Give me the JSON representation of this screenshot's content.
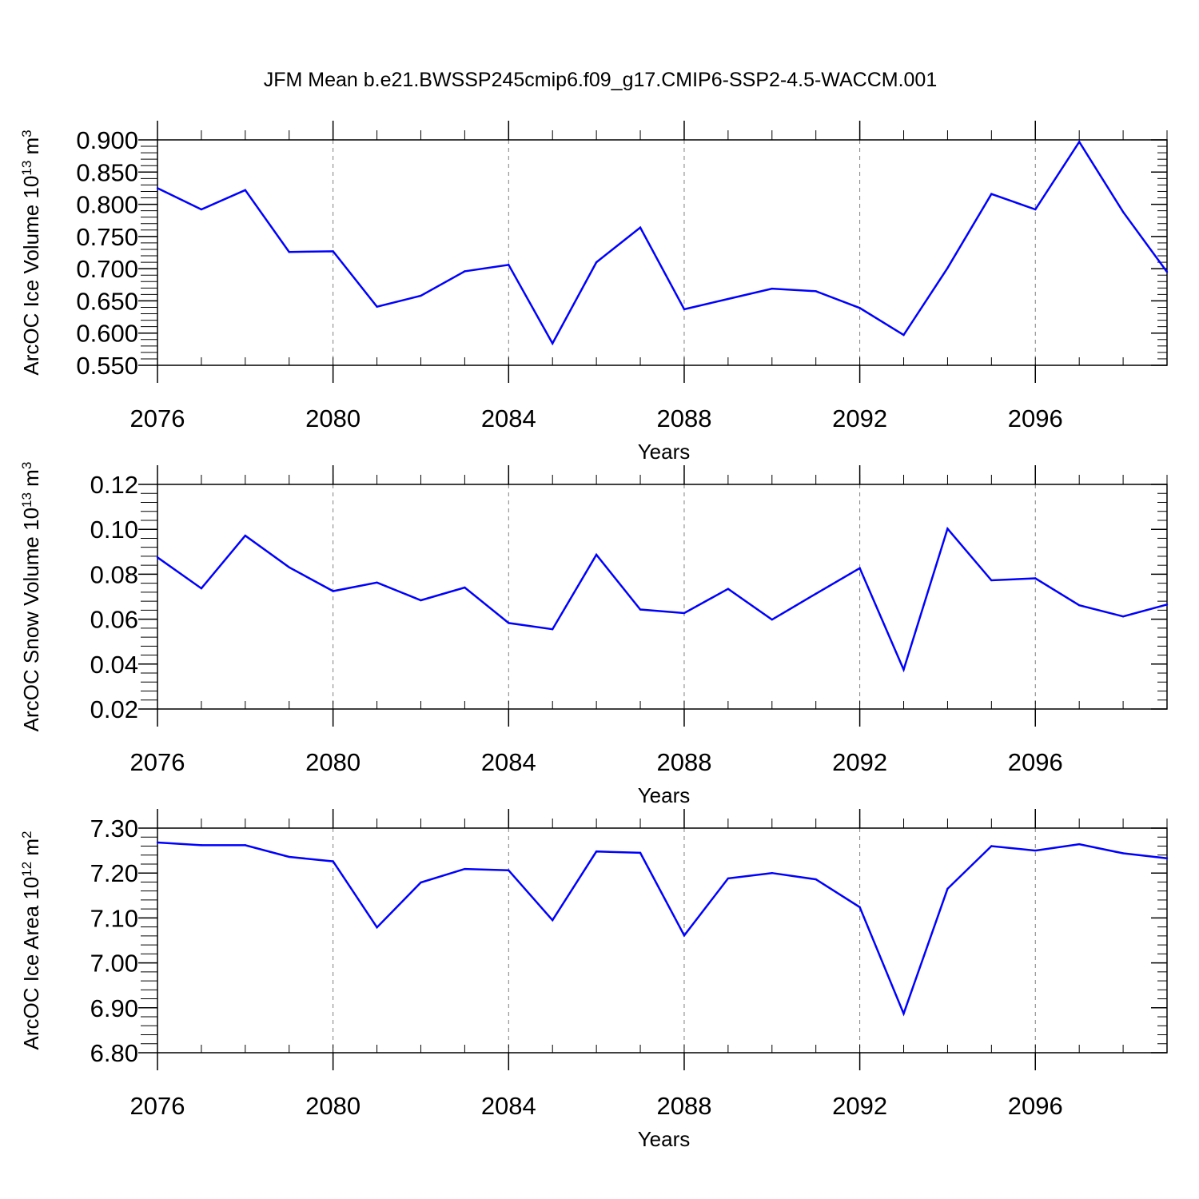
{
  "figure_title": "JFM Mean b.e21.BWSSP245cmip6.f09_g17.CMIP6-SSP2-4.5-WACCM.001",
  "colors": {
    "line": "#0000ff",
    "axis": "#000000",
    "grid": "#808080",
    "background": "#ffffff"
  },
  "chart_data": [
    {
      "type": "line",
      "ylabel": {
        "text": "ArcOC Ice Volume 10",
        "exponent": "13",
        "unit": " m",
        "unit_exponent": "3"
      },
      "xlabel": "Years",
      "xlim": [
        2076,
        2099
      ],
      "ylim": [
        0.55,
        0.9
      ],
      "x_ticks": [
        2076,
        2080,
        2084,
        2088,
        2092,
        2096
      ],
      "x_tick_labels": [
        "2076",
        "2080",
        "2084",
        "2088",
        "2092",
        "2096"
      ],
      "y_ticks": [
        0.55,
        0.6,
        0.65,
        0.7,
        0.75,
        0.8,
        0.85,
        0.9
      ],
      "y_tick_labels": [
        "0.550",
        "0.600",
        "0.650",
        "0.700",
        "0.750",
        "0.800",
        "0.850",
        "0.900"
      ],
      "y_minor_step": 0.01,
      "grid": "vertical dashed at major x ticks",
      "x": [
        2076,
        2077,
        2078,
        2079,
        2080,
        2081,
        2082,
        2083,
        2084,
        2085,
        2086,
        2087,
        2088,
        2089,
        2090,
        2091,
        2092,
        2093,
        2094,
        2095,
        2096,
        2097,
        2098,
        2099
      ],
      "values": [
        0.825,
        0.792,
        0.822,
        0.726,
        0.727,
        0.641,
        0.658,
        0.696,
        0.706,
        0.584,
        0.71,
        0.764,
        0.637,
        0.653,
        0.669,
        0.665,
        0.639,
        0.597,
        0.701,
        0.816,
        0.792,
        0.897,
        0.788,
        0.695
      ]
    },
    {
      "type": "line",
      "ylabel": {
        "text": "ArcOC Snow Volume 10",
        "exponent": "13",
        "unit": " m",
        "unit_exponent": "3"
      },
      "xlabel": "Years",
      "xlim": [
        2076,
        2099
      ],
      "ylim": [
        0.02,
        0.12
      ],
      "x_ticks": [
        2076,
        2080,
        2084,
        2088,
        2092,
        2096
      ],
      "x_tick_labels": [
        "2076",
        "2080",
        "2084",
        "2088",
        "2092",
        "2096"
      ],
      "y_ticks": [
        0.02,
        0.04,
        0.06,
        0.08,
        0.1,
        0.12
      ],
      "y_tick_labels": [
        "0.02",
        "0.04",
        "0.06",
        "0.08",
        "0.10",
        "0.12"
      ],
      "y_minor_step": 0.004,
      "grid": "vertical dashed at major x ticks",
      "x": [
        2076,
        2077,
        2078,
        2079,
        2080,
        2081,
        2082,
        2083,
        2084,
        2085,
        2086,
        2087,
        2088,
        2089,
        2090,
        2091,
        2092,
        2093,
        2094,
        2095,
        2096,
        2097,
        2098,
        2099
      ],
      "values": [
        0.0875,
        0.0737,
        0.0972,
        0.0831,
        0.0725,
        0.0763,
        0.0684,
        0.0741,
        0.0583,
        0.0555,
        0.0887,
        0.0643,
        0.0627,
        0.0735,
        0.0598,
        0.0713,
        0.0827,
        0.0375,
        0.1003,
        0.0773,
        0.0782,
        0.0662,
        0.0612,
        0.0665
      ]
    },
    {
      "type": "line",
      "ylabel": {
        "text": "ArcOC Ice Area 10",
        "exponent": "12",
        "unit": " m",
        "unit_exponent": "2"
      },
      "xlabel": "Years",
      "xlim": [
        2076,
        2099
      ],
      "ylim": [
        6.8,
        7.3
      ],
      "x_ticks": [
        2076,
        2080,
        2084,
        2088,
        2092,
        2096
      ],
      "x_tick_labels": [
        "2076",
        "2080",
        "2084",
        "2088",
        "2092",
        "2096"
      ],
      "y_ticks": [
        6.8,
        6.9,
        7.0,
        7.1,
        7.2,
        7.3
      ],
      "y_tick_labels": [
        "6.80",
        "6.90",
        "7.00",
        "7.10",
        "7.20",
        "7.30"
      ],
      "y_minor_step": 0.02,
      "grid": "vertical dashed at major x ticks",
      "x": [
        2076,
        2077,
        2078,
        2079,
        2080,
        2081,
        2082,
        2083,
        2084,
        2085,
        2086,
        2087,
        2088,
        2089,
        2090,
        2091,
        2092,
        2093,
        2094,
        2095,
        2096,
        2097,
        2098,
        2099
      ],
      "values": [
        7.268,
        7.262,
        7.262,
        7.236,
        7.226,
        7.079,
        7.179,
        7.209,
        7.206,
        7.095,
        7.248,
        7.245,
        7.061,
        7.188,
        7.2,
        7.186,
        7.124,
        6.887,
        7.165,
        7.26,
        7.25,
        7.264,
        7.244,
        7.233
      ]
    }
  ]
}
